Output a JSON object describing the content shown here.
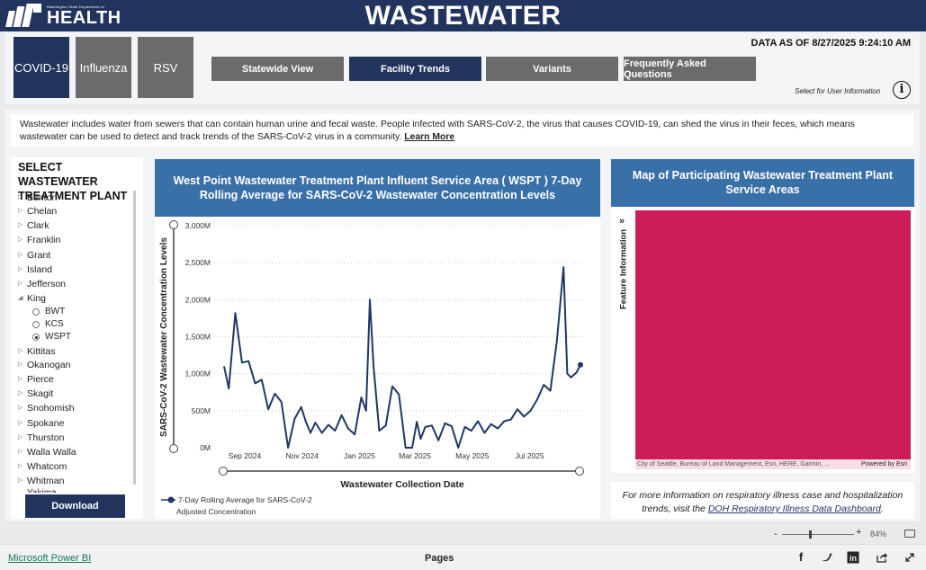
{
  "header": {
    "logo_small": "Washington State Department of",
    "logo_big": "HEALTH",
    "title": "WASTEWATER"
  },
  "disease_tabs": [
    {
      "label": "COVID-19",
      "active": true
    },
    {
      "label": "Influenza",
      "active": false
    },
    {
      "label": "RSV",
      "active": false
    }
  ],
  "view_tabs": [
    {
      "label": "Statewide View",
      "active": false
    },
    {
      "label": "Facility Trends",
      "active": true
    },
    {
      "label": "Variants",
      "active": false
    },
    {
      "label": "Frequently Asked Questions",
      "active": false
    }
  ],
  "data_as_of": "DATA AS OF 8/27/2025 9:24:10 AM",
  "user_info": {
    "text": "Select for User Information",
    "icon": "info-icon"
  },
  "description": {
    "text": "Wastewater includes water from sewers that can contain human urine and fecal waste. People infected with SARS-CoV-2, the virus that causes COVID-19, can shed the virus in their feces, which means wastewater can be used to detect and track trends of the SARS-CoV-2 virus in a community.",
    "link": "Learn More"
  },
  "sidebar": {
    "title": "SELECT WASTEWATER TREATMENT PLANT",
    "counties": [
      "Benton",
      "Chelan",
      "Clark",
      "Franklin",
      "Grant",
      "Island",
      "Jefferson",
      "King",
      "Kittitas",
      "Okanogan",
      "Pierce",
      "Skagit",
      "Snohomish",
      "Spokane",
      "Thurston",
      "Walla Walla",
      "Whatcom",
      "Whitman"
    ],
    "expanded_county": "King",
    "plants": [
      {
        "label": "BWT",
        "selected": false
      },
      {
        "label": "KCS",
        "selected": false
      },
      {
        "label": "WSPT",
        "selected": true
      }
    ],
    "partial_item": "Yakima",
    "download_label": "Download"
  },
  "chart_panel": {
    "title": "West Point Wastewater Treatment Plant Influent Service Area ( WSPT ) 7-Day Rolling Average for SARS-CoV-2 Wastewater Concentration Levels",
    "legend_line1": "7-Day Rolling Average for SARS-CoV-2",
    "legend_line2": "Adjusted Concentration"
  },
  "chart_data": {
    "type": "line",
    "title": "West Point Wastewater Treatment Plant Influent Service Area ( WSPT ) 7-Day Rolling Average for SARS-CoV-2 Wastewater Concentration Levels",
    "xlabel": "Wastewater Collection Date",
    "ylabel": "SARS-CoV-2 Wastewater Concentration Levels",
    "x_tick_labels": [
      "Sep 2024",
      "Nov 2024",
      "Jan 2025",
      "Mar 2025",
      "May 2025",
      "Jul 2025"
    ],
    "y_tick_labels": [
      "0M",
      "500M",
      "1,000M",
      "1,500M",
      "2,000M",
      "2,500M",
      "3,000M"
    ],
    "ylim": [
      0,
      3000
    ],
    "y_unit": "M",
    "color": "#1f3864",
    "series": [
      {
        "name": "7-Day Rolling Average for SARS-CoV-2 Adjusted Concentration",
        "x": [
          "2024-08-10",
          "2024-08-15",
          "2024-08-22",
          "2024-08-29",
          "2024-09-05",
          "2024-09-12",
          "2024-09-19",
          "2024-09-26",
          "2024-10-03",
          "2024-10-10",
          "2024-10-17",
          "2024-10-24",
          "2024-10-31",
          "2024-11-05",
          "2024-11-10",
          "2024-11-15",
          "2024-11-22",
          "2024-11-29",
          "2024-12-06",
          "2024-12-13",
          "2024-12-20",
          "2024-12-27",
          "2025-01-03",
          "2025-01-08",
          "2025-01-12",
          "2025-01-16",
          "2025-01-22",
          "2025-01-29",
          "2025-02-05",
          "2025-02-12",
          "2025-02-19",
          "2025-02-26",
          "2025-03-03",
          "2025-03-07",
          "2025-03-12",
          "2025-03-19",
          "2025-03-26",
          "2025-04-02",
          "2025-04-09",
          "2025-04-16",
          "2025-04-23",
          "2025-04-30",
          "2025-05-07",
          "2025-05-14",
          "2025-05-21",
          "2025-05-28",
          "2025-06-04",
          "2025-06-11",
          "2025-06-18",
          "2025-06-25",
          "2025-07-02",
          "2025-07-09",
          "2025-07-16",
          "2025-07-23",
          "2025-07-30",
          "2025-08-06",
          "2025-08-10",
          "2025-08-14",
          "2025-08-20",
          "2025-08-24"
        ],
        "values": [
          1100,
          800,
          1820,
          1150,
          1170,
          870,
          920,
          520,
          730,
          620,
          0,
          390,
          550,
          350,
          200,
          340,
          200,
          310,
          230,
          440,
          260,
          180,
          680,
          500,
          2000,
          1100,
          230,
          300,
          830,
          720,
          0,
          0,
          350,
          120,
          280,
          300,
          100,
          330,
          290,
          0,
          280,
          230,
          360,
          200,
          320,
          260,
          360,
          380,
          520,
          420,
          500,
          650,
          850,
          770,
          1450,
          2440,
          1000,
          950,
          1020,
          1120
        ]
      }
    ],
    "legend": "bottom-left",
    "grid": "horizontal dotted"
  },
  "map_panel": {
    "title": "Map of Participating Wastewater Treatment Plant Service Areas",
    "feature_info": "Feature Information",
    "attribution": "City of Seattle, Bureau of Land Management, Esri, HERE, Garmin, ...",
    "powered_by": "Powered by Esri",
    "map_color": "#cc1c5a"
  },
  "more_info": {
    "text": "For more information on respiratory illness case and hospitalization trends, visit the",
    "link": "DOH Respiratory Illness Data Dashboard",
    "suffix": "."
  },
  "footer": {
    "pbi_link": "Microsoft Power BI",
    "pages_label": "Pages",
    "zoom_pct": "84%",
    "zoom_minus": "-",
    "zoom_plus": "+",
    "share_icons": [
      "facebook-icon",
      "twitter-icon",
      "linkedin-icon",
      "share-icon",
      "expand-icon"
    ]
  }
}
